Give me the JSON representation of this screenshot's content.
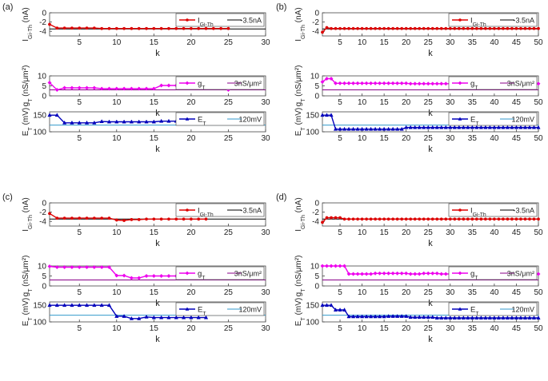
{
  "figure": {
    "panel_labels": [
      "(a)",
      "(b)",
      "(c)",
      "(d)"
    ],
    "xlabel": "k",
    "legend_labels": {
      "I": {
        "main": "I",
        "sub": "Gi-Th",
        "ref": "-3.5nA"
      },
      "g": {
        "main": "g",
        "sub": "T",
        "ref": "3nS/μm²"
      },
      "E": {
        "main": "E",
        "sub": "T",
        "ref": "120mV"
      }
    },
    "ylabels": {
      "I": {
        "main": "I",
        "sub": "Gi-Th",
        "unit": " (nA)"
      },
      "g": {
        "main": "g",
        "sub": "T",
        "unit": " (nS/μm²)"
      },
      "E": {
        "main": "E",
        "sub": "T",
        "unit": " (mV)"
      }
    }
  },
  "colors": {
    "I": "#dd0000",
    "g": "#ee00ee",
    "E": "#0000bb",
    "ref_I": "#000000",
    "ref_g": "#880088",
    "ref_E": "#3399cc",
    "axis": "#444444"
  },
  "chart_data": [
    {
      "panel": "(a)",
      "type": "line",
      "series": [
        {
          "var": "I",
          "ref": -3.5,
          "x_start": 1,
          "xlim": [
            1,
            30
          ],
          "xticks": [
            5,
            10,
            15,
            20,
            25,
            30
          ],
          "ylim": [
            -5,
            0
          ],
          "yticks": [
            -4,
            -2,
            0
          ],
          "values": [
            -2.5,
            -3.3,
            -3.3,
            -3.3,
            -3.3,
            -3.3,
            -3.3,
            -3.4,
            -3.4,
            -3.4,
            -3.4,
            -3.4,
            -3.4,
            -3.4,
            -3.4,
            -3.4,
            -3.4,
            -3.4,
            -3.4,
            -3.4,
            -3.4,
            -3.4,
            -3.4,
            -3.4,
            -3.4
          ]
        },
        {
          "var": "g",
          "ref": 3,
          "x_start": 1,
          "xlim": [
            1,
            30
          ],
          "xticks": [
            5,
            10,
            15,
            20,
            25,
            30
          ],
          "ylim": [
            0,
            10
          ],
          "yticks": [
            0,
            5,
            10
          ],
          "values": [
            6.6,
            3.0,
            4.0,
            4.0,
            4.0,
            4.0,
            4.0,
            3.6,
            3.6,
            3.6,
            3.6,
            3.6,
            3.6,
            3.6,
            3.6,
            5.2,
            5.2,
            5.2,
            5.2,
            5.2,
            5.2,
            5.2,
            5.2,
            5.2,
            3.0
          ]
        },
        {
          "var": "E",
          "ref": 120,
          "x_start": 1,
          "xlim": [
            1,
            30
          ],
          "xticks": [
            5,
            10,
            15,
            20,
            25,
            30
          ],
          "ylim": [
            100,
            160
          ],
          "yticks": [
            100,
            150
          ],
          "values": [
            150,
            150,
            127,
            127,
            127,
            127,
            127,
            131,
            130,
            130,
            130,
            130,
            130,
            130,
            130,
            132,
            132,
            132,
            132,
            132,
            132,
            132,
            132,
            132,
            129
          ]
        }
      ]
    },
    {
      "panel": "(b)",
      "type": "line",
      "series": [
        {
          "var": "I",
          "ref": -3.5,
          "x_start": 1,
          "xlim": [
            1,
            50
          ],
          "xticks": [
            5,
            10,
            15,
            20,
            25,
            30,
            35,
            40,
            45,
            50
          ],
          "ylim": [
            -5,
            0
          ],
          "yticks": [
            -4,
            -2,
            0
          ],
          "values": [
            -4.2,
            -3.2,
            -3.4,
            -3.4,
            -3.4,
            -3.4,
            -3.4,
            -3.4,
            -3.4,
            -3.4,
            -3.4,
            -3.4,
            -3.4,
            -3.4,
            -3.4,
            -3.4,
            -3.4,
            -3.4,
            -3.4,
            -3.4,
            -3.4,
            -3.4,
            -3.4,
            -3.4,
            -3.4,
            -3.4,
            -3.4,
            -3.4,
            -3.4,
            -3.4,
            -3.4,
            -3.4,
            -3.4,
            -3.4,
            -3.4,
            -3.4,
            -3.4,
            -3.4,
            -3.4,
            -3.4,
            -3.4,
            -3.4,
            -3.4,
            -3.4,
            -3.4,
            -3.4,
            -3.4,
            -3.4,
            -3.4,
            -3.4
          ]
        },
        {
          "var": "g",
          "ref": 3,
          "x_start": 1,
          "xlim": [
            1,
            50
          ],
          "xticks": [
            5,
            10,
            15,
            20,
            25,
            30,
            35,
            40,
            45,
            50
          ],
          "ylim": [
            0,
            10
          ],
          "yticks": [
            0,
            5,
            10
          ],
          "values": [
            7.0,
            8.6,
            8.6,
            6.3,
            6.3,
            6.3,
            6.3,
            6.3,
            6.3,
            6.3,
            6.3,
            6.3,
            6.3,
            6.3,
            6.3,
            6.3,
            6.3,
            6.3,
            6.3,
            6.3,
            6.1,
            6.1,
            6.1,
            6.1,
            6.1,
            6.1,
            6.1,
            6.1,
            6.1,
            6.1,
            6.1,
            6.1,
            6.1,
            6.1,
            6.1,
            6.1,
            6.1,
            6.1,
            6.1,
            6.1,
            6.1,
            6.1,
            6.1,
            6.1,
            6.1,
            6.1,
            6.1,
            6.1,
            6.1,
            6.1
          ]
        },
        {
          "var": "E",
          "ref": 120,
          "x_start": 1,
          "xlim": [
            1,
            50
          ],
          "xticks": [
            5,
            10,
            15,
            20,
            25,
            30,
            35,
            40,
            45,
            50
          ],
          "ylim": [
            100,
            160
          ],
          "yticks": [
            100,
            150
          ],
          "values": [
            150,
            150,
            150,
            108,
            108,
            108,
            108,
            108,
            108,
            108,
            108,
            108,
            108,
            108,
            108,
            108,
            108,
            108,
            108,
            113,
            113,
            113,
            113,
            113,
            113,
            113,
            113,
            113,
            113,
            113,
            113,
            113,
            113,
            113,
            113,
            113,
            113,
            113,
            113,
            113,
            113,
            113,
            113,
            113,
            113,
            113,
            113,
            113,
            113,
            113
          ]
        }
      ]
    },
    {
      "panel": "(c)",
      "type": "line",
      "series": [
        {
          "var": "I",
          "ref": -3.5,
          "x_start": 1,
          "xlim": [
            1,
            30
          ],
          "xticks": [
            5,
            10,
            15,
            20,
            25,
            30
          ],
          "ylim": [
            -5,
            0
          ],
          "yticks": [
            -4,
            -2,
            0
          ],
          "values": [
            -2.3,
            -3.3,
            -3.3,
            -3.3,
            -3.3,
            -3.3,
            -3.3,
            -3.3,
            -3.3,
            -3.7,
            -3.8,
            -3.6,
            -3.6,
            -3.5,
            -3.5,
            -3.5,
            -3.5,
            -3.5,
            -3.5,
            -3.5,
            -3.5,
            -3.5
          ]
        },
        {
          "var": "g",
          "ref": 3,
          "x_start": 1,
          "xlim": [
            1,
            30
          ],
          "xticks": [
            5,
            10,
            15,
            20,
            25,
            30
          ],
          "ylim": [
            0,
            10
          ],
          "yticks": [
            0,
            5,
            10
          ],
          "values": [
            9.8,
            9.4,
            9.4,
            9.4,
            9.4,
            9.4,
            9.4,
            9.4,
            9.4,
            5.2,
            5.2,
            4.0,
            4.0,
            5.0,
            5.0,
            5.0,
            5.0,
            5.0,
            5.0,
            5.0,
            5.0,
            5.0
          ]
        },
        {
          "var": "E",
          "ref": 120,
          "x_start": 1,
          "xlim": [
            1,
            30
          ],
          "xticks": [
            5,
            10,
            15,
            20,
            25,
            30
          ],
          "ylim": [
            100,
            160
          ],
          "yticks": [
            100,
            150
          ],
          "values": [
            150,
            150,
            150,
            150,
            150,
            150,
            150,
            150,
            150,
            117,
            117,
            110,
            110,
            115,
            113,
            113,
            113,
            113,
            113,
            113,
            113,
            113
          ]
        }
      ]
    },
    {
      "panel": "(d)",
      "type": "line",
      "series": [
        {
          "var": "I",
          "ref": -3.5,
          "x_start": 1,
          "xlim": [
            1,
            50
          ],
          "xticks": [
            5,
            10,
            15,
            20,
            25,
            30,
            35,
            40,
            45,
            50
          ],
          "ylim": [
            -5,
            0
          ],
          "yticks": [
            -4,
            -2,
            0
          ],
          "values": [
            -4.2,
            -3.2,
            -3.2,
            -3.2,
            -3.2,
            -3.5,
            -3.5,
            -3.5,
            -3.5,
            -3.5,
            -3.5,
            -3.5,
            -3.5,
            -3.5,
            -3.5,
            -3.5,
            -3.5,
            -3.5,
            -3.5,
            -3.5,
            -3.5,
            -3.5,
            -3.5,
            -3.5,
            -3.5,
            -3.5,
            -3.5,
            -3.5,
            -3.5,
            -3.5,
            -3.5,
            -3.5,
            -3.5,
            -3.5,
            -3.5,
            -3.5,
            -3.5,
            -3.5,
            -3.5,
            -3.5,
            -3.5,
            -3.5,
            -3.5,
            -3.5,
            -3.5,
            -3.5,
            -3.5,
            -3.5,
            -3.5,
            -3.5
          ]
        },
        {
          "var": "g",
          "ref": 3,
          "x_start": 1,
          "xlim": [
            1,
            50
          ],
          "xticks": [
            5,
            10,
            15,
            20,
            25,
            30,
            35,
            40,
            45,
            50
          ],
          "ylim": [
            0,
            10
          ],
          "yticks": [
            0,
            5,
            10
          ],
          "values": [
            10,
            10,
            10,
            10,
            10,
            10,
            6.0,
            6.0,
            6.0,
            6.0,
            6.0,
            6.0,
            6.3,
            6.3,
            6.3,
            6.3,
            6.3,
            6.3,
            6.3,
            6.3,
            6.0,
            6.0,
            6.0,
            6.3,
            6.3,
            6.3,
            6.3,
            6.0,
            6.0,
            6.0,
            6.0,
            6.0,
            6.0,
            6.0,
            6.0,
            6.0,
            6.0,
            6.0,
            6.0,
            6.0,
            6.0,
            6.0,
            6.0,
            6.0,
            6.0,
            6.0,
            6.0,
            6.0,
            6.0,
            6.0
          ]
        },
        {
          "var": "E",
          "ref": 120,
          "x_start": 1,
          "xlim": [
            1,
            50
          ],
          "xticks": [
            5,
            10,
            15,
            20,
            25,
            30,
            35,
            40,
            45,
            50
          ],
          "ylim": [
            100,
            160
          ],
          "yticks": [
            100,
            150
          ],
          "values": [
            150,
            150,
            150,
            136,
            136,
            136,
            116,
            116,
            116,
            116,
            116,
            116,
            116,
            116,
            116,
            117,
            117,
            117,
            117,
            117,
            114,
            114,
            114,
            114,
            114,
            114,
            112,
            112,
            112,
            112,
            112,
            112,
            112,
            112,
            112,
            112,
            112,
            112,
            112,
            112,
            112,
            112,
            112,
            112,
            112,
            112,
            112,
            112,
            112,
            112
          ]
        }
      ]
    }
  ]
}
